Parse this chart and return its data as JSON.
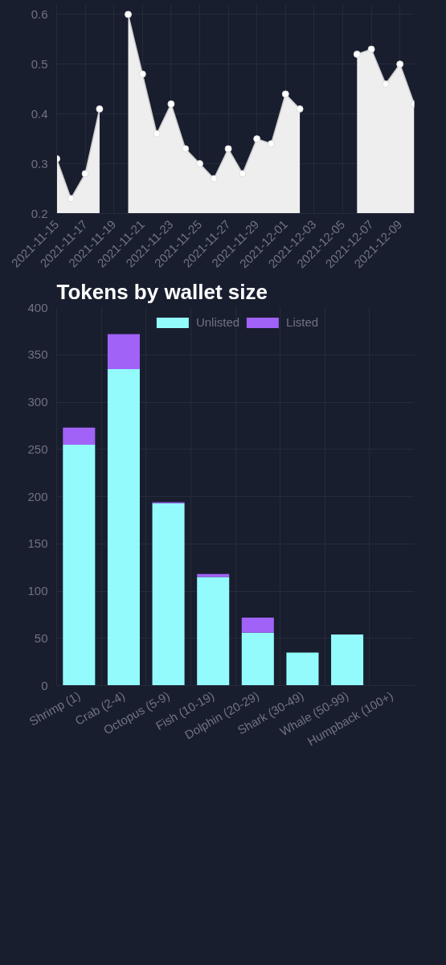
{
  "chart_data": [
    {
      "type": "area",
      "x": [
        "2021-11-15",
        "2021-11-16",
        "2021-11-17",
        "2021-11-18",
        "2021-11-19",
        "2021-11-20",
        "2021-11-21",
        "2021-11-22",
        "2021-11-23",
        "2021-11-24",
        "2021-11-25",
        "2021-11-26",
        "2021-11-27",
        "2021-11-28",
        "2021-11-29",
        "2021-11-30",
        "2021-12-01",
        "2021-12-02",
        "2021-12-03",
        "2021-12-04",
        "2021-12-05",
        "2021-12-06",
        "2021-12-07",
        "2021-12-08",
        "2021-12-09",
        "2021-12-10"
      ],
      "series": [
        {
          "color": "#eeeeee",
          "values": [
            0.31,
            0.23,
            0.28,
            0.41,
            null,
            0.6,
            0.48,
            0.36,
            0.42,
            0.33,
            0.3,
            0.27,
            0.33,
            0.28,
            0.35,
            0.34,
            0.44,
            0.41,
            null,
            null,
            null,
            0.52,
            0.53,
            0.46,
            0.5,
            0.42
          ]
        }
      ],
      "ylim": [
        0.2,
        0.62
      ],
      "yticks": [
        0.2,
        0.3,
        0.4,
        0.5,
        0.6
      ],
      "xlim": [
        "2021-11-15",
        "2021-12-10"
      ],
      "xticks": [
        "2021-11-15",
        "2021-11-17",
        "2021-11-19",
        "2021-11-21",
        "2021-11-23",
        "2021-11-25",
        "2021-11-27",
        "2021-11-29",
        "2021-12-01",
        "2021-12-03",
        "2021-12-05",
        "2021-12-07",
        "2021-12-09"
      ],
      "marker": "circle",
      "grid": true
    },
    {
      "type": "bar",
      "title": "Tokens by wallet size",
      "stacked": true,
      "categories": [
        "Shrimp (1)",
        "Crab (2-4)",
        "Octopus (5-9)",
        "Fish (10-19)",
        "Dolphin (20-29)",
        "Shark (30-49)",
        "Whale (50-99)",
        "Humpback (100+)"
      ],
      "series": [
        {
          "name": "Unlisted",
          "color": "#93fbfb",
          "values": [
            255,
            335,
            193,
            115,
            56,
            35,
            54,
            0
          ]
        },
        {
          "name": "Listed",
          "color": "#a162f7",
          "values": [
            18,
            37,
            1,
            3,
            16,
            0,
            0,
            0
          ]
        }
      ],
      "ylim": [
        0,
        400
      ],
      "yticks": [
        0,
        50,
        100,
        150,
        200,
        250,
        300,
        350,
        400
      ],
      "grid": true,
      "legend": "top"
    }
  ]
}
